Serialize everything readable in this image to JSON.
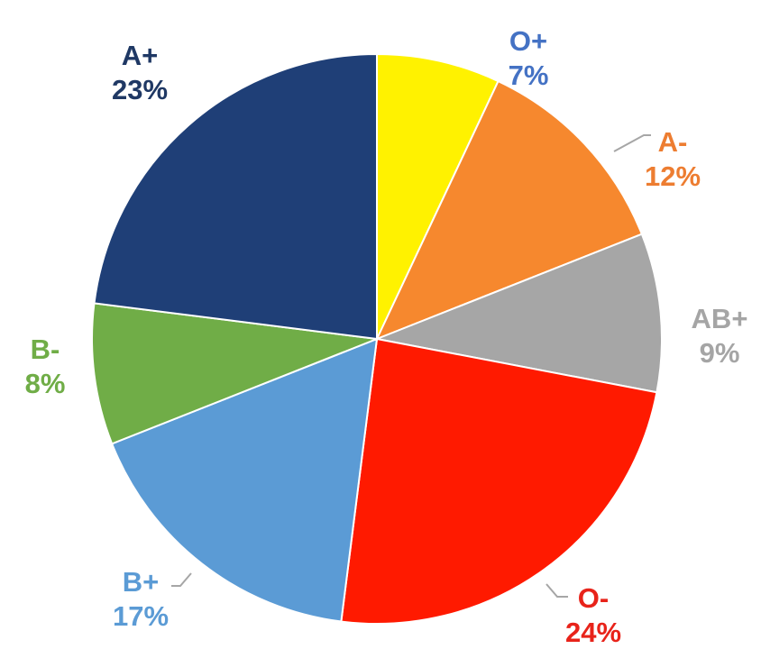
{
  "chart_data": {
    "type": "pie",
    "title": "",
    "start": "12 o'clock",
    "direction": "clockwise",
    "slices": [
      {
        "label": "O+",
        "value": 7,
        "display": "7%",
        "color": "#FFF200",
        "label_color": "#4472C4"
      },
      {
        "label": "A-",
        "value": 12,
        "display": "12%",
        "color": "#F6882E",
        "label_color": "#ED7D31"
      },
      {
        "label": "AB+",
        "value": 9,
        "display": "9%",
        "color": "#A6A6A6",
        "label_color": "#A5A5A5"
      },
      {
        "label": "O-",
        "value": 24,
        "display": "24%",
        "color": "#FF1A00",
        "label_color": "#E8231A"
      },
      {
        "label": "B+",
        "value": 17,
        "display": "17%",
        "color": "#5B9BD5",
        "label_color": "#5B9BD5"
      },
      {
        "label": "B-",
        "value": 8,
        "display": "8%",
        "color": "#70AD47",
        "label_color": "#70AD47"
      },
      {
        "label": "A+",
        "value": 23,
        "display": "23%",
        "color": "#1F3F77",
        "label_color": "#1F3864"
      }
    ]
  }
}
